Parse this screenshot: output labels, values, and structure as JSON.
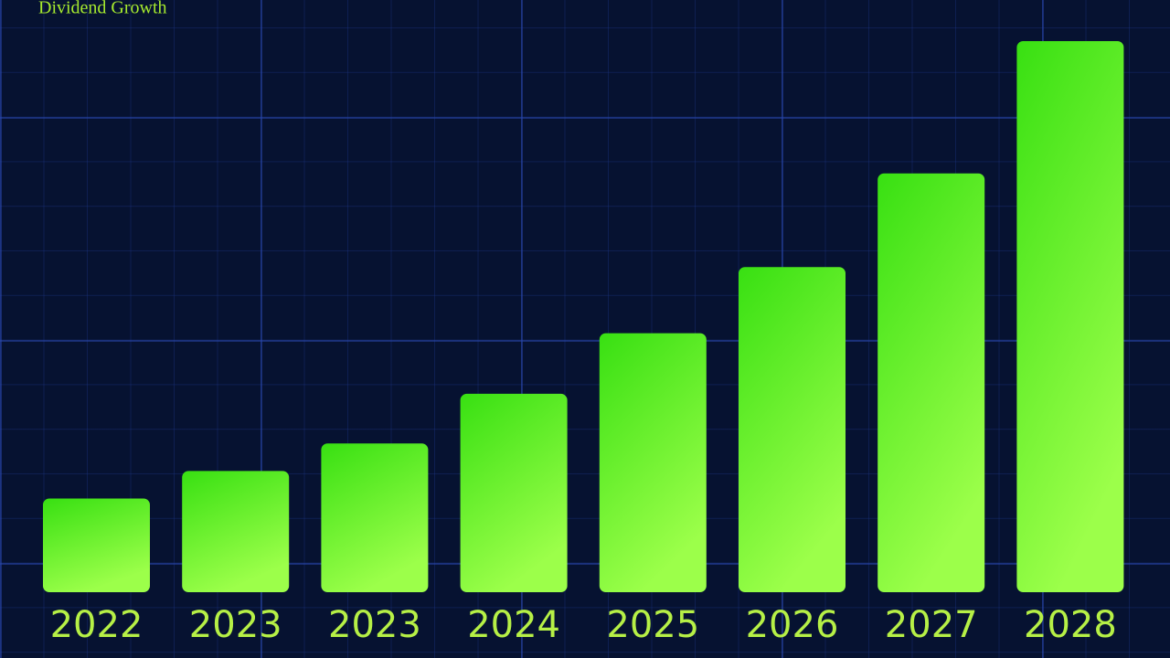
{
  "chart_data": {
    "type": "bar",
    "title": "Dividend Growth",
    "categories": [
      "2022",
      "2023",
      "2023",
      "2024",
      "2025",
      "2026",
      "2027",
      "2028"
    ],
    "values": [
      17,
      22,
      27,
      36,
      47,
      59,
      76,
      100
    ],
    "color": "#38e012"
  }
}
